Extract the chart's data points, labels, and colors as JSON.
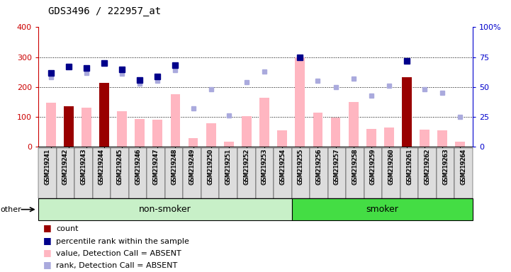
{
  "title": "GDS3496 / 222957_at",
  "samples": [
    "GSM219241",
    "GSM219242",
    "GSM219243",
    "GSM219244",
    "GSM219245",
    "GSM219246",
    "GSM219247",
    "GSM219248",
    "GSM219249",
    "GSM219250",
    "GSM219251",
    "GSM219252",
    "GSM219253",
    "GSM219254",
    "GSM219255",
    "GSM219256",
    "GSM219257",
    "GSM219258",
    "GSM219259",
    "GSM219260",
    "GSM219261",
    "GSM219262",
    "GSM219263",
    "GSM219264"
  ],
  "count_values": [
    0,
    135,
    0,
    213,
    0,
    0,
    0,
    0,
    0,
    0,
    0,
    0,
    0,
    0,
    0,
    0,
    0,
    0,
    0,
    0,
    233,
    0,
    0,
    0
  ],
  "value_absent": [
    148,
    0,
    130,
    0,
    120,
    92,
    91,
    177,
    30,
    80,
    18,
    103,
    165,
    55,
    300,
    115,
    98,
    150,
    60,
    65,
    0,
    57,
    55,
    18
  ],
  "percentile_rank": [
    62,
    67,
    66,
    70,
    65,
    56,
    59,
    68,
    0,
    0,
    0,
    0,
    0,
    0,
    75,
    0,
    0,
    0,
    0,
    0,
    72,
    0,
    0,
    0
  ],
  "rank_absent": [
    58,
    0,
    62,
    0,
    61,
    53,
    55,
    64,
    32,
    48,
    26,
    54,
    63,
    0,
    0,
    55,
    50,
    57,
    43,
    51,
    0,
    48,
    45,
    25
  ],
  "groups": [
    {
      "label": "non-smoker",
      "start": 0,
      "end": 13,
      "color": "#C8F0C8"
    },
    {
      "label": "smoker",
      "start": 14,
      "end": 23,
      "color": "#44DD44"
    }
  ],
  "ylim_left": [
    0,
    400
  ],
  "ylim_right": [
    0,
    100
  ],
  "yticks_left": [
    0,
    100,
    200,
    300,
    400
  ],
  "yticks_right": [
    0,
    25,
    50,
    75,
    100
  ],
  "bar_width": 0.55,
  "count_color": "#990000",
  "value_absent_color": "#FFB6C1",
  "percentile_rank_color": "#00008B",
  "rank_absent_color": "#AAAADD",
  "bg_color": "#FFFFFF",
  "plot_bg_color": "#FFFFFF",
  "left_axis_color": "#CC0000",
  "right_axis_color": "#0000CC"
}
